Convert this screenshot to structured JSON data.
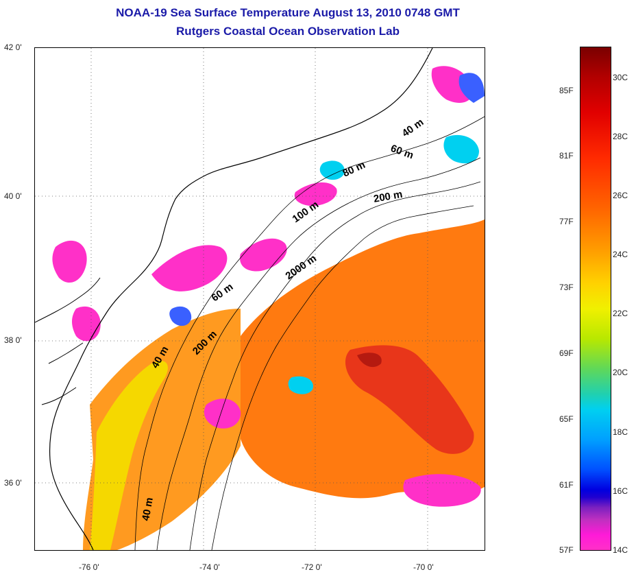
{
  "title": {
    "line1": "NOAA-19 Sea Surface Temperature August 13, 2010 0748 GMT",
    "line2": "Rutgers Coastal Ocean Observation Lab"
  },
  "map": {
    "lat_labels": [
      "42 0'",
      "40 0'",
      "38 0'",
      "36 0'"
    ],
    "lon_labels": [
      "-76 0'",
      "-74 0'",
      "-72 0'",
      "-70 0'"
    ],
    "contour_labels": [
      "40 m",
      "60 m",
      "80 m",
      "200 m",
      "100 m",
      "2000 m",
      "60 m",
      "200 m",
      "40 m",
      "40 m"
    ],
    "lat_range": [
      35.0,
      42.0
    ],
    "lon_range": [
      -77.0,
      -69.0
    ],
    "colors": {
      "land_outline": "#000000",
      "grid": "#555555"
    }
  },
  "colorbar": {
    "fahrenheit_labels": [
      "85F",
      "81F",
      "77F",
      "73F",
      "69F",
      "65F",
      "61F",
      "57F"
    ],
    "celsius_labels": [
      "30C",
      "28C",
      "26C",
      "24C",
      "22C",
      "20C",
      "18C",
      "16C",
      "14C"
    ],
    "range_c": [
      14,
      31
    ]
  }
}
